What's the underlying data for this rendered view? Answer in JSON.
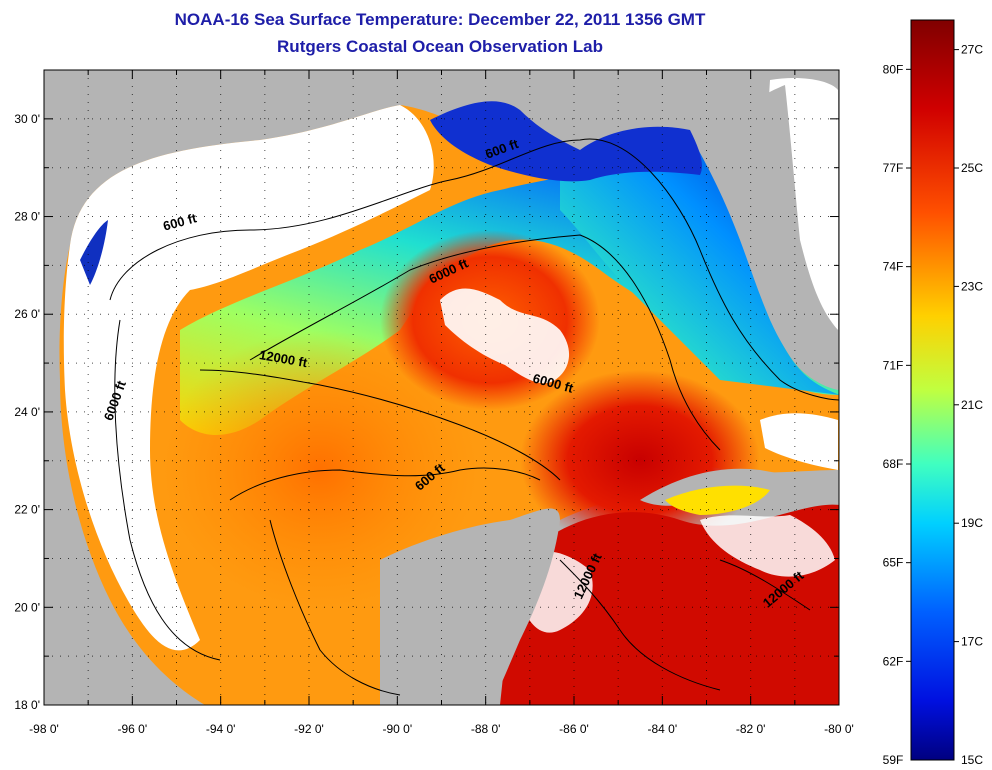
{
  "title": "NOAA-16 Sea Surface Temperature:  December 22, 2011 1356 GMT",
  "subtitle": "Rutgers Coastal Ocean Observation Lab",
  "map": {
    "lon_range": [
      -98,
      -80
    ],
    "lat_range": [
      18,
      31
    ],
    "lon_ticks": [
      "-98 0'",
      "-96 0'",
      "-94 0'",
      "-92 0'",
      "-90 0'",
      "-88 0'",
      "-86 0'",
      "-84 0'",
      "-82 0'",
      "-80 0'"
    ],
    "lat_ticks": [
      "18 0'",
      "20 0'",
      "22 0'",
      "24 0'",
      "26 0'",
      "28 0'",
      "30 0'"
    ],
    "grid": "dotted",
    "land_color": "#b4b4b4",
    "cloud_color": "#ffffff",
    "contour_labels": [
      {
        "text": "600 ft",
        "lon": -87.6,
        "lat": 29.3
      },
      {
        "text": "600 ft",
        "lon": -94.9,
        "lat": 27.8
      },
      {
        "text": "6000 ft",
        "lon": -88.8,
        "lat": 26.8
      },
      {
        "text": "6000 ft",
        "lon": -96.3,
        "lat": 24.2
      },
      {
        "text": "12000 ft",
        "lon": -92.6,
        "lat": 25.0
      },
      {
        "text": "6000 ft",
        "lon": -86.5,
        "lat": 24.5
      },
      {
        "text": "600 ft",
        "lon": -89.2,
        "lat": 22.6
      },
      {
        "text": "12000 ft",
        "lon": -85.6,
        "lat": 20.6
      },
      {
        "text": "12000 ft",
        "lon": -81.2,
        "lat": 20.3
      }
    ]
  },
  "colorbar": {
    "fahrenheit_labels": [
      "80F",
      "77F",
      "74F",
      "71F",
      "68F",
      "65F",
      "62F",
      "59F"
    ],
    "celsius_labels": [
      "27C",
      "25C",
      "23C",
      "21C",
      "19C",
      "17C",
      "15C"
    ],
    "colors": [
      "#800000",
      "#ff0000",
      "#ff8000",
      "#ffff00",
      "#80ff80",
      "#00ffff",
      "#0080ff",
      "#0000ff",
      "#000080"
    ]
  }
}
